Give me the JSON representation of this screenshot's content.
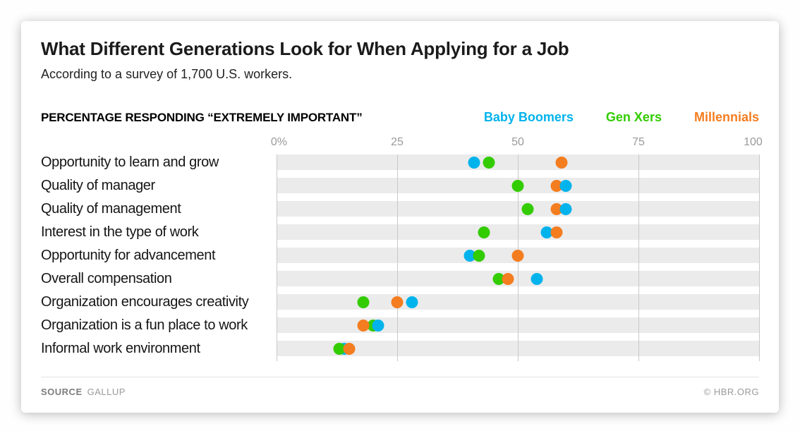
{
  "header": {
    "title": "What Different Generations Look for When Applying for a Job",
    "subtitle": "According to a survey of 1,700 U.S. workers."
  },
  "kicker": "PERCENTAGE RESPONDING “EXTREMELY IMPORTANT”",
  "footer": {
    "source_label": "SOURCE",
    "source_value": "GALLUP",
    "copyright": "© HBR.ORG"
  },
  "colors": {
    "baby_boomers": "#00b3ec",
    "gen_xers": "#33cc00",
    "millennials": "#f47d20",
    "stripe": "#ebebeb",
    "gridline": "#c9c9c9",
    "tick_text": "#9a9a9a"
  },
  "chart_data": {
    "type": "scatter",
    "title": "What Different Generations Look for When Applying for a Job",
    "subtitle": "According to a survey of 1,700 U.S. workers.",
    "xlabel": "PERCENTAGE RESPONDING “EXTREMELY IMPORTANT”",
    "xlim": [
      0,
      100
    ],
    "xticks": [
      "0%",
      "25",
      "50",
      "75",
      "100"
    ],
    "xtick_values": [
      0,
      25,
      50,
      75,
      100
    ],
    "grid": "vertical",
    "legend_position": "top-right",
    "categories": [
      "Opportunity to learn and grow",
      "Quality of manager",
      "Quality of management",
      "Interest in the type of work",
      "Opportunity for advancement",
      "Overall compensation",
      "Organization encourages creativity",
      "Organization is a fun place to work",
      "Informal work environment"
    ],
    "series": [
      {
        "name": "Baby Boomers",
        "key": "baby-boomers",
        "color": "#00b3ec",
        "values": [
          41,
          60,
          60,
          56,
          40,
          54,
          28,
          21,
          14
        ]
      },
      {
        "name": "Gen Xers",
        "key": "gen-xers",
        "color": "#33cc00",
        "values": [
          44,
          50,
          52,
          43,
          42,
          46,
          18,
          20,
          13
        ]
      },
      {
        "name": "Millennials",
        "key": "millennials",
        "color": "#f47d20",
        "values": [
          59,
          58,
          58,
          58,
          50,
          48,
          25,
          18,
          15
        ]
      }
    ],
    "draw_order": [
      [
        0,
        1,
        2
      ],
      [
        1,
        2,
        0
      ],
      [
        1,
        2,
        0
      ],
      [
        1,
        0,
        2
      ],
      [
        0,
        1,
        2
      ],
      [
        1,
        2,
        0
      ],
      [
        0,
        1,
        2
      ],
      [
        1,
        0,
        2
      ],
      [
        0,
        1,
        2
      ]
    ]
  }
}
